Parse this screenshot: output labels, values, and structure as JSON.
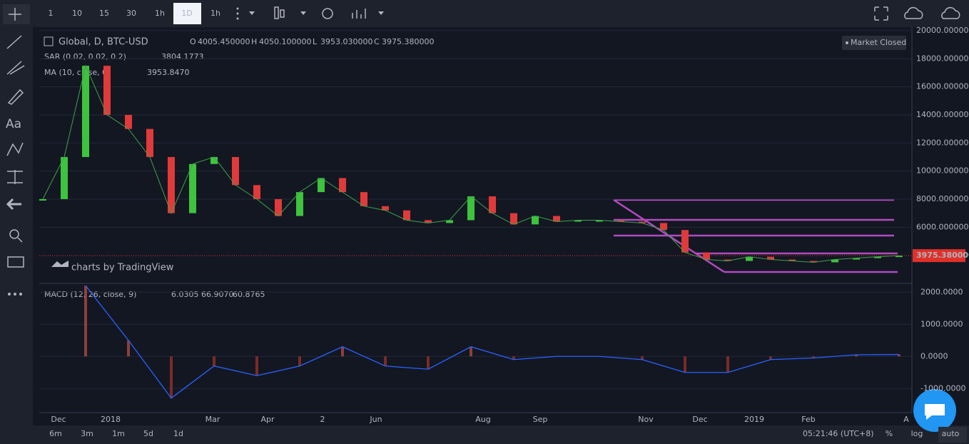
{
  "toolbar": {
    "intervals": [
      "1",
      "10",
      "15",
      "30",
      "1h",
      "1D",
      "1h"
    ],
    "text_tool": "Aa"
  },
  "legend": {
    "symbol": "Global, D, BTC-USD",
    "ohlc": [
      {
        "key": "O",
        "value": "4005.450000"
      },
      {
        "key": "H",
        "value": "4050.100000"
      },
      {
        "key": "L",
        "value": "3953.030000"
      },
      {
        "key": "C",
        "value": "3975.380000"
      }
    ],
    "sar": {
      "name": "SAR (0.02, 0.02, 0.2)",
      "value": "3804.1773"
    },
    "ma": {
      "name": "MA (10, close, 0)",
      "value": "3953.8470"
    }
  },
  "status": "Market Closed",
  "watermark": "charts by TradingView",
  "price_chart": {
    "ylim": [
      2000,
      20250
    ],
    "yticks": [
      {
        "value": 20000,
        "label": "20000.000000"
      },
      {
        "value": 18000,
        "label": "18000.000000"
      },
      {
        "value": 16000,
        "label": "16000.000000"
      },
      {
        "value": 14000,
        "label": "14000.000000"
      },
      {
        "value": 12000,
        "label": "12000.000000"
      },
      {
        "value": 10000,
        "label": "10000.000000"
      },
      {
        "value": 8000,
        "label": "8000.000000"
      },
      {
        "value": 6000,
        "label": "6000.000000"
      }
    ],
    "values": [
      8000,
      11000,
      17500,
      14000,
      13000,
      11000,
      7000,
      10500,
      11000,
      9000,
      8000,
      6800,
      8500,
      9500,
      8500,
      7500,
      7200,
      6500,
      6300,
      6500,
      8200,
      7000,
      6200,
      6800,
      6400,
      6500,
      6500,
      6400,
      6300,
      5800,
      4200,
      3700,
      3600,
      3900,
      3700,
      3600,
      3500,
      3700,
      3800,
      3900,
      3975.38
    ],
    "current_price": {
      "value": 3975.38,
      "label": "3975.380000"
    }
  },
  "macd": {
    "name": "MACD (12, 26, close, 9)",
    "readings": [
      "6.0305",
      "66.9070",
      "60.8765"
    ],
    "ylim": [
      -1750,
      2250
    ],
    "yticks": [
      {
        "value": 2000,
        "label": "2000.0000"
      },
      {
        "value": 1000,
        "label": "1000.0000"
      },
      {
        "value": 0,
        "label": "0.0000"
      },
      {
        "value": -1000,
        "label": "-1000.0000"
      }
    ],
    "values": [
      null,
      2200,
      500,
      -1300,
      -300,
      -600,
      -300,
      300,
      -300,
      -400,
      300,
      -100,
      0,
      0,
      -100,
      -500,
      -500,
      -100,
      -50,
      50,
      60
    ]
  },
  "x_axis": {
    "labels": [
      "Dec",
      "2018",
      "Mar",
      "Apr",
      "2",
      "Jun",
      "Aug",
      "Sep",
      "Nov",
      "Dec",
      "2019",
      "Feb",
      "A"
    ]
  },
  "bottom_bar": {
    "ranges": [
      "6m",
      "3m",
      "1m",
      "5d",
      "1d"
    ],
    "time": "05:21:46 (UTC+8)",
    "buttons": [
      "%",
      "log",
      "auto"
    ]
  }
}
